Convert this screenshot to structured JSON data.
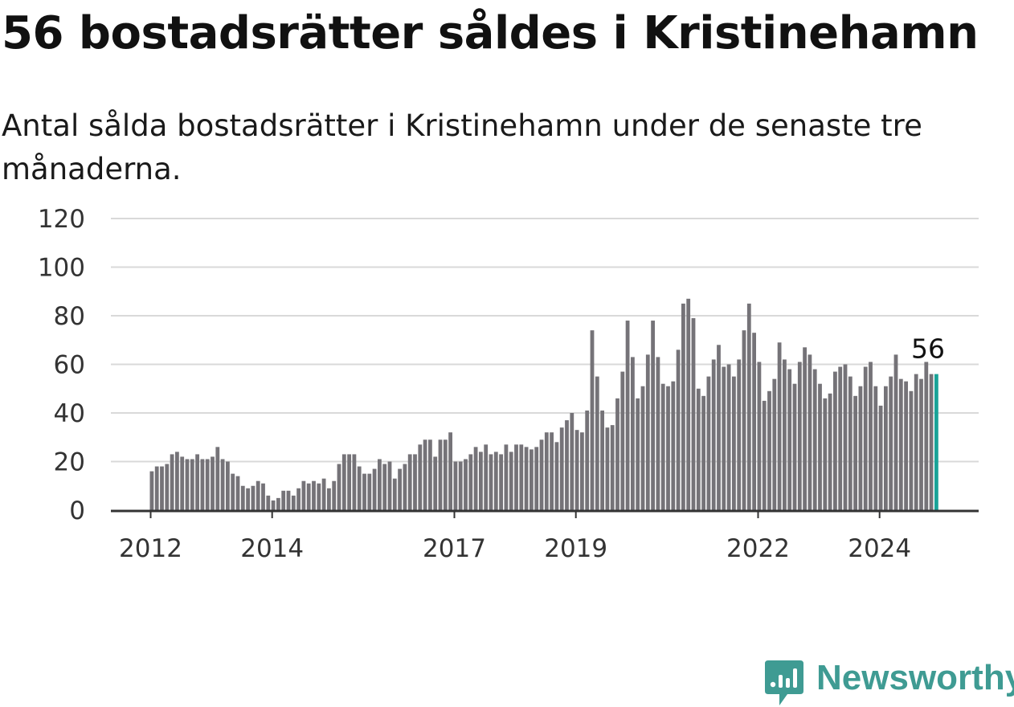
{
  "title": "56 bostadsrätter såldes i Kristinehamn",
  "subtitle": "Antal sålda bostadsrätter i Kristinehamn under de senaste tre månaderna.",
  "brand": {
    "name": "Newsworthy",
    "color": "#3f9b93",
    "icon": "newsworthy-logo-icon"
  },
  "colors": {
    "bar": "#757378",
    "highlight": "#1aa398",
    "grid": "#d9d9d9",
    "axis": "#333333"
  },
  "chart_data": {
    "type": "bar",
    "title": "56 bostadsrätter såldes i Kristinehamn",
    "xlabel": "",
    "ylabel": "",
    "ylim": [
      0,
      120
    ],
    "yticks": [
      0,
      20,
      40,
      60,
      80,
      100,
      120
    ],
    "grid": true,
    "x_start": "2012-01",
    "xtick_labels": [
      {
        "label": "2012",
        "x": "2012-01"
      },
      {
        "label": "2014",
        "x": "2014-01"
      },
      {
        "label": "2017",
        "x": "2017-01"
      },
      {
        "label": "2019",
        "x": "2019-01"
      },
      {
        "label": "2022",
        "x": "2022-01"
      },
      {
        "label": "2024",
        "x": "2024-01"
      }
    ],
    "series": [
      {
        "values": [
          16,
          18,
          18,
          19,
          23,
          24,
          22,
          21,
          21,
          23,
          21,
          21,
          22,
          26,
          21,
          20,
          15,
          14,
          10,
          9,
          10,
          12,
          11,
          6,
          4,
          5,
          8,
          8,
          6,
          9,
          12,
          11,
          12,
          11,
          13,
          9,
          12,
          19,
          23,
          23,
          23,
          18,
          15,
          15,
          17,
          21,
          19,
          20,
          13,
          17,
          19,
          23,
          23,
          27,
          29,
          29,
          22,
          29,
          29,
          32,
          20,
          20,
          21,
          23,
          26,
          24,
          27,
          23,
          24,
          23,
          27,
          24,
          27,
          27,
          26,
          25,
          26,
          29,
          32,
          32,
          28,
          34,
          37,
          40,
          33,
          32,
          41,
          74,
          55,
          41,
          34,
          35,
          46,
          57,
          78,
          63,
          46,
          51,
          64,
          78,
          63,
          52,
          51,
          53,
          66,
          85,
          87,
          79,
          50,
          47,
          55,
          62,
          68,
          59,
          60,
          55,
          62,
          74,
          85,
          73,
          61,
          45,
          49,
          54,
          69,
          62,
          58,
          52,
          61,
          67,
          64,
          58,
          52,
          46,
          48,
          57,
          59,
          60,
          55,
          47,
          51,
          59,
          61,
          51,
          43,
          51,
          55,
          64,
          54,
          53,
          49,
          56,
          54,
          61,
          56,
          56
        ]
      }
    ],
    "highlight": {
      "index": 155,
      "label": "56"
    }
  }
}
